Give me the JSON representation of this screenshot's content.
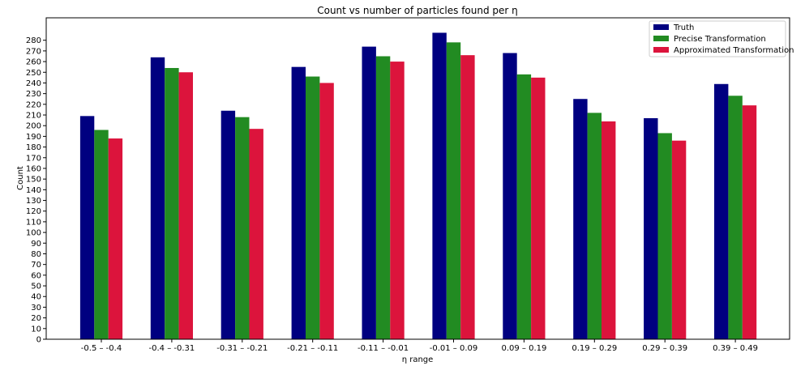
{
  "chart_data": {
    "type": "bar",
    "title": "Count vs number of particles found per η",
    "xlabel": "η range",
    "ylabel": "Count",
    "categories": [
      "-0.5 – -0.4",
      "-0.4 – -0.31",
      "-0.31 – -0.21",
      "-0.21 – -0.11",
      "-0.11 – -0.01",
      "-0.01 – 0.09",
      "0.09 – 0.19",
      "0.19 – 0.29",
      "0.29 – 0.39",
      "0.39 – 0.49"
    ],
    "series": [
      {
        "name": "Truth",
        "color": "#000080",
        "values": [
          209,
          264,
          214,
          255,
          274,
          287,
          268,
          225,
          207,
          239
        ]
      },
      {
        "name": "Precise Transformation",
        "color": "#228b22",
        "values": [
          196,
          254,
          208,
          246,
          265,
          278,
          248,
          212,
          193,
          228
        ]
      },
      {
        "name": "Approximated Transformation",
        "color": "#dc143c",
        "values": [
          188,
          250,
          197,
          240,
          260,
          266,
          245,
          204,
          186,
          219
        ]
      }
    ],
    "ylim": [
      0,
      301
    ],
    "yticks": [
      0,
      10,
      20,
      30,
      40,
      50,
      60,
      70,
      80,
      90,
      100,
      110,
      120,
      130,
      140,
      150,
      160,
      170,
      180,
      190,
      200,
      210,
      220,
      230,
      240,
      250,
      260,
      270,
      280
    ],
    "grid": false,
    "legend_position": "upper right"
  }
}
